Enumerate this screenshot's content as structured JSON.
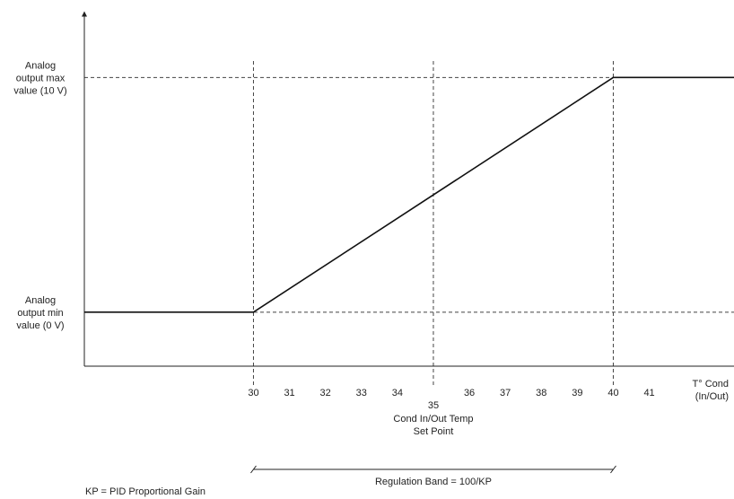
{
  "chart_data": {
    "type": "line",
    "x_axis": {
      "label_lines": [
        "T° Cond",
        "(In/Out)"
      ],
      "ticks": [
        30,
        31,
        32,
        33,
        34,
        35,
        36,
        37,
        38,
        39,
        40,
        41
      ],
      "range": [
        25.3,
        45
      ]
    },
    "y_axis": {
      "levels": [
        {
          "value": 10,
          "label_lines": [
            "Analog",
            "output max",
            "value (10 V)"
          ]
        },
        {
          "value": 0,
          "label_lines": [
            "Analog",
            "output min",
            "value (0 V)"
          ]
        }
      ],
      "range": [
        -2.3,
        12.9
      ]
    },
    "series": [
      {
        "x": [
          25.3,
          30,
          40,
          45
        ],
        "y": [
          0,
          0,
          10,
          10
        ]
      }
    ],
    "guides": {
      "vertical_x": [
        30,
        35,
        40
      ],
      "horizontal_y": [
        10,
        0
      ],
      "horizontal_extent": [
        25.3,
        45
      ]
    },
    "set_point": {
      "x": 35,
      "label_lines": [
        "Cond In/Out Temp",
        "Set Point"
      ]
    },
    "band": {
      "from": 30,
      "to": 40,
      "label": "Regulation Band = 100/KP"
    },
    "footnote": "KP = PID Proportional Gain"
  }
}
